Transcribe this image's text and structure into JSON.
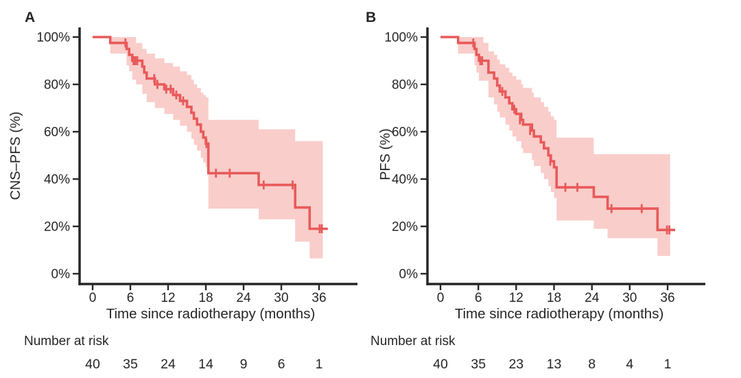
{
  "colors": {
    "curve": "#e85a5a",
    "ci_band": "#f9cdca",
    "axis_and_text": "#262626"
  },
  "chart_data": [
    {
      "type": "line",
      "subtype": "kaplan_meier_step_with_ci",
      "panel_label": "A",
      "title": "",
      "ylabel": "CNS–PFS (%)",
      "xlabel": "Time since radiotherapy (months)",
      "xlim": [
        0,
        38
      ],
      "ylim": [
        0,
        100
      ],
      "grid": false,
      "legend": false,
      "xticks": [
        0,
        6,
        12,
        18,
        24,
        30,
        36
      ],
      "ytick_values": [
        100,
        80,
        60,
        40,
        20,
        0
      ],
      "ytick_labels": [
        "100%",
        "80%",
        "60%",
        "40%",
        "20%",
        "0%"
      ],
      "series": [
        {
          "name": "CNS-PFS",
          "end_time": 37.4,
          "steps": [
            [
              0,
              100
            ],
            [
              2.8,
              97.5
            ],
            [
              5.4,
              95
            ],
            [
              5.8,
              92.5
            ],
            [
              6.3,
              90
            ],
            [
              7.9,
              87.5
            ],
            [
              8.2,
              85
            ],
            [
              8.6,
              82.5
            ],
            [
              9.9,
              80
            ],
            [
              11.4,
              78
            ],
            [
              12.8,
              75.5
            ],
            [
              13.9,
              73
            ],
            [
              15.0,
              70.5
            ],
            [
              15.7,
              68
            ],
            [
              16.1,
              65.5
            ],
            [
              16.6,
              63
            ],
            [
              17.2,
              60
            ],
            [
              17.6,
              57.5
            ],
            [
              18.0,
              55
            ],
            [
              18.4,
              42.5
            ],
            [
              26.4,
              37.5
            ],
            [
              32.2,
              28
            ],
            [
              34.5,
              19
            ]
          ],
          "censor_marks": [
            [
              5.2,
              97.5
            ],
            [
              6.5,
              90
            ],
            [
              6.8,
              90
            ],
            [
              7.1,
              90
            ],
            [
              9.8,
              82.5
            ],
            [
              10.3,
              80
            ],
            [
              11.7,
              78
            ],
            [
              12.4,
              78
            ],
            [
              13.3,
              75.5
            ],
            [
              14.4,
              73
            ],
            [
              18.1,
              55
            ],
            [
              19.6,
              42.5
            ],
            [
              21.8,
              42.5
            ],
            [
              27.2,
              37.5
            ],
            [
              31.8,
              37.5
            ],
            [
              36.1,
              19
            ],
            [
              36.45,
              19
            ]
          ],
          "ci_band": {
            "end_time": 36.6,
            "steps": [
              [
                2.8,
                93,
                100
              ],
              [
                5.4,
                88,
                100
              ],
              [
                5.8,
                85.5,
                100
              ],
              [
                6.3,
                82,
                100
              ],
              [
                6.9,
                80,
                97.5
              ],
              [
                7.9,
                76,
                95
              ],
              [
                8.6,
                72.5,
                93
              ],
              [
                9.9,
                70,
                91
              ],
              [
                11.4,
                67.5,
                89
              ],
              [
                12.8,
                65,
                87.5
              ],
              [
                13.9,
                62.5,
                85.5
              ],
              [
                15.0,
                60,
                84
              ],
              [
                15.7,
                57,
                82
              ],
              [
                16.1,
                54.5,
                80
              ],
              [
                16.6,
                52,
                78.5
              ],
              [
                17.2,
                49,
                76.5
              ],
              [
                17.6,
                47,
                75.5
              ],
              [
                18.0,
                45,
                74.5
              ],
              [
                18.4,
                27.5,
                65
              ],
              [
                26.4,
                23,
                61
              ],
              [
                32.2,
                13.5,
                56
              ],
              [
                34.5,
                6.5,
                56
              ]
            ]
          }
        }
      ],
      "number_at_risk": {
        "header": "Number at risk",
        "times": [
          0,
          6,
          12,
          18,
          24,
          30,
          36
        ],
        "counts": [
          40,
          35,
          24,
          14,
          9,
          6,
          1
        ]
      }
    },
    {
      "type": "line",
      "subtype": "kaplan_meier_step_with_ci",
      "panel_label": "B",
      "title": "",
      "ylabel": "PFS (%)",
      "xlabel": "Time since radiotherapy (months)",
      "xlim": [
        0,
        38
      ],
      "ylim": [
        0,
        100
      ],
      "grid": false,
      "legend": false,
      "xticks": [
        0,
        6,
        12,
        18,
        24,
        30,
        36
      ],
      "ytick_values": [
        100,
        80,
        60,
        40,
        20,
        0
      ],
      "ytick_labels": [
        "100%",
        "80%",
        "60%",
        "40%",
        "20%",
        "0%"
      ],
      "series": [
        {
          "name": "PFS",
          "end_time": 37.2,
          "steps": [
            [
              0,
              100
            ],
            [
              2.8,
              97.5
            ],
            [
              5.4,
              95
            ],
            [
              5.7,
              92.5
            ],
            [
              6.1,
              90
            ],
            [
              7.6,
              85
            ],
            [
              8.5,
              82.5
            ],
            [
              9.0,
              79.5
            ],
            [
              9.4,
              77
            ],
            [
              10.3,
              74.5
            ],
            [
              10.9,
              72
            ],
            [
              11.4,
              69.5
            ],
            [
              12.0,
              67.5
            ],
            [
              12.8,
              65
            ],
            [
              13.1,
              63
            ],
            [
              14.5,
              60.5
            ],
            [
              14.8,
              58
            ],
            [
              15.9,
              55.5
            ],
            [
              16.4,
              53
            ],
            [
              17.1,
              50
            ],
            [
              17.5,
              47.5
            ],
            [
              18.0,
              45
            ],
            [
              18.4,
              36.5
            ],
            [
              24.3,
              32.5
            ],
            [
              26.5,
              27.5
            ],
            [
              34.4,
              18.5
            ]
          ],
          "censor_marks": [
            [
              5.2,
              97.5
            ],
            [
              6.3,
              90
            ],
            [
              6.6,
              90
            ],
            [
              9.8,
              77
            ],
            [
              11.7,
              69.5
            ],
            [
              12.6,
              65
            ],
            [
              14.2,
              60.5
            ],
            [
              17.4,
              47.5
            ],
            [
              19.8,
              36.5
            ],
            [
              21.7,
              36.5
            ],
            [
              27.1,
              27.5
            ],
            [
              31.9,
              27.5
            ],
            [
              35.9,
              18.5
            ],
            [
              36.3,
              18.5
            ]
          ],
          "ci_band": {
            "end_time": 36.4,
            "steps": [
              [
                2.8,
                93,
                100
              ],
              [
                5.4,
                88,
                100
              ],
              [
                5.7,
                85,
                100
              ],
              [
                6.1,
                81.5,
                100
              ],
              [
                6.8,
                81.5,
                97.5
              ],
              [
                7.6,
                74.5,
                94
              ],
              [
                8.5,
                71.5,
                92.5
              ],
              [
                9.0,
                68.5,
                90.5
              ],
              [
                9.4,
                66,
                88.5
              ],
              [
                10.3,
                63,
                87
              ],
              [
                10.9,
                60.5,
                85
              ],
              [
                11.4,
                58,
                83.5
              ],
              [
                12.0,
                56,
                82
              ],
              [
                12.8,
                53,
                80
              ],
              [
                13.1,
                51,
                78.5
              ],
              [
                14.5,
                48,
                76.5
              ],
              [
                14.8,
                45.5,
                74.5
              ],
              [
                15.9,
                42.5,
                72.5
              ],
              [
                16.4,
                40,
                70.5
              ],
              [
                17.1,
                37,
                68.5
              ],
              [
                17.5,
                34.5,
                66.5
              ],
              [
                18.0,
                32,
                65
              ],
              [
                18.4,
                22.5,
                57.5
              ],
              [
                24.3,
                19,
                50.5
              ],
              [
                26.5,
                15,
                50.5
              ],
              [
                34.4,
                7.5,
                50.5
              ]
            ]
          }
        }
      ],
      "number_at_risk": {
        "header": "Number at risk",
        "times": [
          0,
          6,
          12,
          18,
          24,
          30,
          36
        ],
        "counts": [
          40,
          35,
          23,
          13,
          8,
          4,
          1
        ]
      }
    }
  ]
}
